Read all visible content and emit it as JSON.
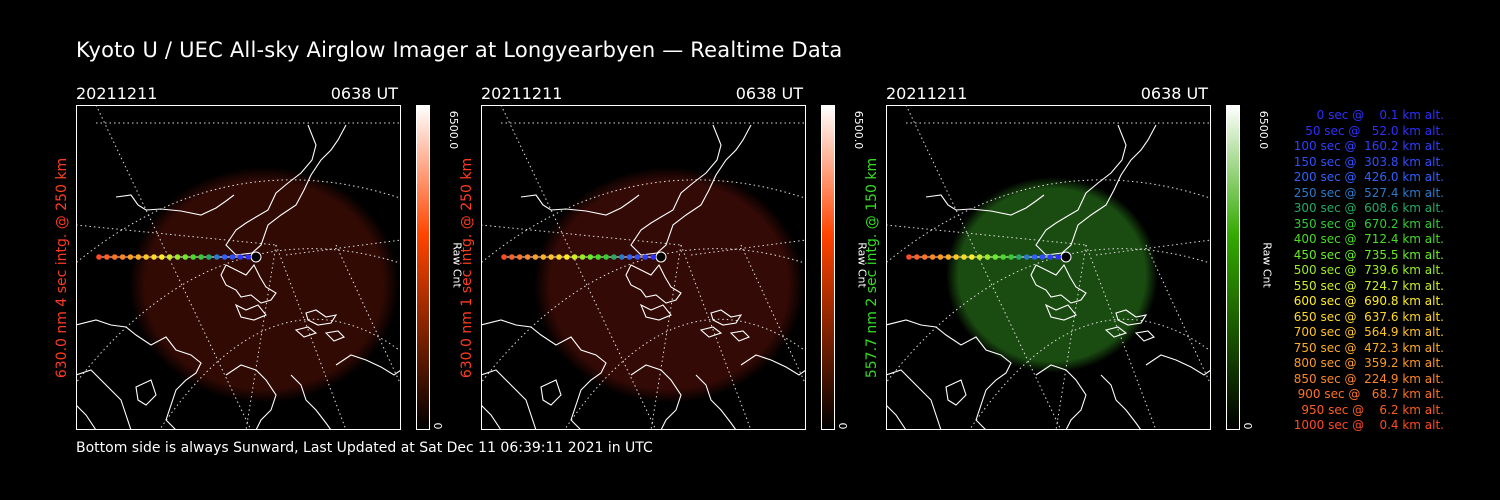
{
  "title": "Kyoto U / UEC All-sky Airglow Imager at Longyearbyen — Realtime Data",
  "footer": "Bottom side is always Sunward, Last Updated at Sat Dec 11 06:39:11 2021 in UTC",
  "panels": [
    {
      "date": "20211211",
      "time": "0638 UT",
      "ylabel": "630.0 nm  4 sec intg. @ 250 km",
      "label_color": "#ff3b1f",
      "cbar_max": "6500.0",
      "cbar_min": "0",
      "cbar_unit": "Raw Cnt",
      "cbar_color": "#ff4400",
      "glow_color": "#5a1208",
      "glow_opacity": 0.55
    },
    {
      "date": "20211211",
      "time": "0638 UT",
      "ylabel": "630.0 nm  1 sec intg. @ 250 km",
      "label_color": "#ff3b1f",
      "cbar_max": "6500.0",
      "cbar_min": "0",
      "cbar_unit": "Raw Cnt",
      "cbar_color": "#ff4400",
      "glow_color": "#4a0e08",
      "glow_opacity": 0.7
    },
    {
      "date": "20211211",
      "time": "0638 UT",
      "ylabel": "557.7 nm  2 sec intg. @ 150 km",
      "label_color": "#33dd22",
      "cbar_max": "6500.0",
      "cbar_min": "0",
      "cbar_unit": "Raw Cnt",
      "cbar_color": "#33aa00",
      "glow_color": "#1f5a14",
      "glow_opacity": 0.85
    }
  ],
  "legend": [
    {
      "text": "   0 sec @    0.1 km alt.",
      "color": "#2f2fff"
    },
    {
      "text": "  50 sec @   52.0 km alt.",
      "color": "#2f2fff"
    },
    {
      "text": " 100 sec @  160.2 km alt.",
      "color": "#2f3fff"
    },
    {
      "text": " 150 sec @  303.8 km alt.",
      "color": "#2f4fff"
    },
    {
      "text": " 200 sec @  426.0 km alt.",
      "color": "#3060ff"
    },
    {
      "text": " 250 sec @  527.4 km alt.",
      "color": "#2a7acc"
    },
    {
      "text": " 300 sec @  608.6 km alt.",
      "color": "#22aa66"
    },
    {
      "text": " 350 sec @  670.2 km alt.",
      "color": "#33cc33"
    },
    {
      "text": " 400 sec @  712.4 km alt.",
      "color": "#44dd22"
    },
    {
      "text": " 450 sec @  735.5 km alt.",
      "color": "#66ee22"
    },
    {
      "text": " 500 sec @  739.6 km alt.",
      "color": "#99ee22"
    },
    {
      "text": " 550 sec @  724.7 km alt.",
      "color": "#ccee22"
    },
    {
      "text": " 600 sec @  690.8 km alt.",
      "color": "#ffee22"
    },
    {
      "text": " 650 sec @  637.6 km alt.",
      "color": "#ffd822"
    },
    {
      "text": " 700 sec @  564.9 km alt.",
      "color": "#ffc322"
    },
    {
      "text": " 750 sec @  472.3 km alt.",
      "color": "#ffae22"
    },
    {
      "text": " 800 sec @  359.2 km alt.",
      "color": "#ff9a22"
    },
    {
      "text": " 850 sec @  224.9 km alt.",
      "color": "#ff8622"
    },
    {
      "text": " 900 sec @   68.7 km alt.",
      "color": "#ff7222"
    },
    {
      "text": " 950 sec @    6.2 km alt.",
      "color": "#ff5e22"
    },
    {
      "text": "1000 sec @    0.4 km alt.",
      "color": "#ff4a22"
    }
  ]
}
